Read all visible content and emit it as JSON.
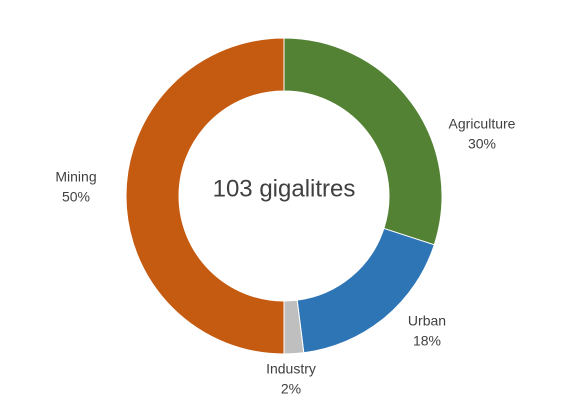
{
  "chart_data": {
    "type": "donut",
    "center_text": "103 gigalitres",
    "categories": [
      "Agriculture",
      "Urban",
      "Industry",
      "Mining"
    ],
    "values": [
      30,
      18,
      2,
      50
    ],
    "value_labels": [
      "30%",
      "18%",
      "2%",
      "50%"
    ],
    "colors": [
      "#548235",
      "#2e75b6",
      "#bfbfbf",
      "#c55a11"
    ]
  }
}
